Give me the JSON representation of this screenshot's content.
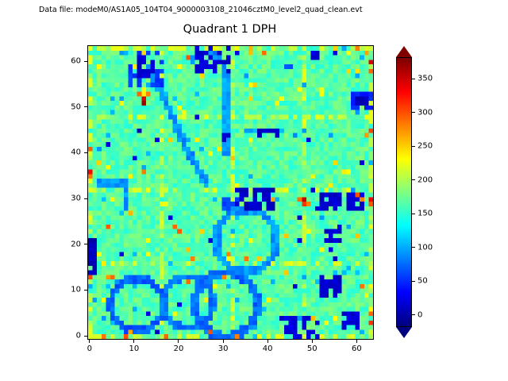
{
  "header": {
    "datafile": "Data file: modeM0/AS1A05_104T04_9000003108_21046cztM0_level2_quad_clean.evt"
  },
  "chart_data": {
    "type": "heatmap",
    "title": "Quadrant 1 DPH",
    "xlabel": "",
    "ylabel": "",
    "grid": {
      "width": 64,
      "height": 64
    },
    "xlim": [
      -0.5,
      63.5
    ],
    "ylim": [
      -0.5,
      63.5
    ],
    "x_ticks": [
      0,
      10,
      20,
      30,
      40,
      50,
      60
    ],
    "y_ticks": [
      0,
      10,
      20,
      30,
      40,
      50,
      60
    ],
    "colormap": "jet",
    "colorbar": {
      "ticks": [
        0,
        50,
        100,
        150,
        200,
        250,
        300,
        350
      ],
      "vmin": -18,
      "vmax": 382,
      "extend": "both"
    },
    "base_value": 166,
    "jitter": 20,
    "boundaries": {
      "positions": [
        0,
        16,
        32,
        48,
        63
      ],
      "value": 212,
      "coverage": 0.42
    },
    "speckles": [
      {
        "p": 0.01,
        "value": 16
      },
      {
        "p": 0.016,
        "value": 100
      },
      {
        "p": 0.014,
        "value": 230
      },
      {
        "p": 0.008,
        "value": 252
      },
      {
        "p": 0.004,
        "value": 288
      }
    ],
    "rings": [
      {
        "cx": 10.5,
        "cy": 7,
        "r": 5.8,
        "w": 1.1,
        "value": 70
      },
      {
        "cx": 22,
        "cy": 7.5,
        "r": 5.6,
        "w": 1.1,
        "value": 80
      },
      {
        "cx": 30.5,
        "cy": 7,
        "r": 7.0,
        "w": 1.2,
        "value": 75
      },
      {
        "cx": 35,
        "cy": 21,
        "r": 6.8,
        "w": 1.2,
        "value": 90
      }
    ],
    "lines": [
      {
        "pts": [
          [
            30.5,
            40
          ],
          [
            30.5,
            57
          ]
        ],
        "w": 1.1,
        "value": 95
      },
      {
        "pts": [
          [
            23,
            60.5
          ],
          [
            26,
            62
          ],
          [
            29,
            61
          ],
          [
            30.5,
            58
          ]
        ],
        "w": 1.2,
        "value": 85
      },
      {
        "pts": [
          [
            13,
            59
          ],
          [
            16,
            53
          ],
          [
            19,
            47
          ],
          [
            21,
            42
          ],
          [
            24,
            37
          ],
          [
            26,
            33.5
          ]
        ],
        "w": 1.2,
        "value": 88
      },
      {
        "pts": [
          [
            2,
            33.5
          ],
          [
            8,
            33.5
          ],
          [
            8,
            28.5
          ]
        ],
        "w": 1.1,
        "value": 92
      },
      {
        "pts": [
          [
            35,
            45
          ],
          [
            43,
            45
          ]
        ],
        "w": 1.0,
        "value": 100
      }
    ],
    "blobs": [
      {
        "x": 9,
        "y": 55,
        "w": 8,
        "h": 8,
        "value": 55,
        "density": 0.5
      },
      {
        "x": 11,
        "y": 57,
        "w": 4,
        "h": 5,
        "value": 14,
        "density": 0.6
      },
      {
        "x": 24,
        "y": 58,
        "w": 8,
        "h": 6,
        "value": 14,
        "density": 0.6
      },
      {
        "x": 33,
        "y": 28,
        "w": 9,
        "h": 5,
        "value": 9,
        "density": 0.85
      },
      {
        "x": 30,
        "y": 28,
        "w": 4,
        "h": 3,
        "value": 60,
        "density": 0.6
      },
      {
        "x": 52,
        "y": 28,
        "w": 5,
        "h": 4,
        "value": 13,
        "density": 0.8
      },
      {
        "x": 58,
        "y": 28,
        "w": 4,
        "h": 4,
        "value": 16,
        "density": 0.7
      },
      {
        "x": 53,
        "y": 21,
        "w": 4,
        "h": 3,
        "value": 15,
        "density": 0.75
      },
      {
        "x": 52,
        "y": 9,
        "w": 5,
        "h": 5,
        "value": 12,
        "density": 0.7
      },
      {
        "x": 57,
        "y": 2,
        "w": 4,
        "h": 4,
        "value": 16,
        "density": 0.7
      },
      {
        "x": 44,
        "y": 0,
        "w": 8,
        "h": 5,
        "value": 20,
        "density": 0.5
      },
      {
        "x": 0,
        "y": 14,
        "w": 2,
        "h": 8,
        "value": 4,
        "density": 0.95
      },
      {
        "x": 59,
        "y": 50,
        "w": 5,
        "h": 4,
        "value": 45,
        "density": 0.8
      },
      {
        "x": 60,
        "y": 51,
        "w": 3,
        "h": 2,
        "value": 7,
        "density": 1
      },
      {
        "x": 50,
        "y": 61,
        "w": 2,
        "h": 2,
        "value": 15,
        "density": 0.7
      },
      {
        "x": 44,
        "y": 58,
        "w": 2,
        "h": 2,
        "value": 70,
        "density": 0.6
      },
      {
        "x": 46,
        "y": 44,
        "w": 3,
        "h": 2,
        "value": 80,
        "density": 0.5
      },
      {
        "x": 38,
        "y": 44,
        "w": 5,
        "h": 2,
        "value": 12,
        "density": 0.45
      },
      {
        "x": 29,
        "y": 43,
        "w": 3,
        "h": 3,
        "value": 12,
        "density": 0.4
      }
    ],
    "points": [
      [
        12,
        52,
        345
      ],
      [
        12,
        51,
        368
      ],
      [
        11,
        53,
        292
      ],
      [
        13,
        53,
        283
      ],
      [
        22,
        61,
        298
      ],
      [
        63,
        60,
        345
      ],
      [
        63,
        58,
        292
      ],
      [
        62,
        62,
        268
      ],
      [
        63,
        45,
        305
      ],
      [
        62,
        44,
        272
      ],
      [
        0,
        41,
        296
      ],
      [
        0,
        36,
        332
      ],
      [
        0,
        35,
        286
      ],
      [
        47,
        30,
        288
      ],
      [
        48,
        30,
        356
      ],
      [
        48,
        29,
        312
      ],
      [
        49,
        29,
        280
      ],
      [
        60,
        31,
        302
      ],
      [
        61,
        30,
        282
      ],
      [
        41,
        30,
        268
      ],
      [
        63,
        30,
        334
      ],
      [
        63,
        29,
        300
      ],
      [
        5,
        13,
        292
      ],
      [
        4,
        13,
        272
      ],
      [
        0,
        13,
        302
      ],
      [
        23,
        17,
        282
      ],
      [
        3,
        0,
        286
      ],
      [
        8,
        0,
        302
      ],
      [
        9,
        1,
        266
      ],
      [
        17,
        0,
        292
      ],
      [
        27,
        1,
        302
      ],
      [
        33,
        0,
        282
      ],
      [
        63,
        5,
        292
      ],
      [
        63,
        3,
        312
      ],
      [
        36,
        62,
        258
      ],
      [
        55,
        63,
        250
      ]
    ]
  }
}
